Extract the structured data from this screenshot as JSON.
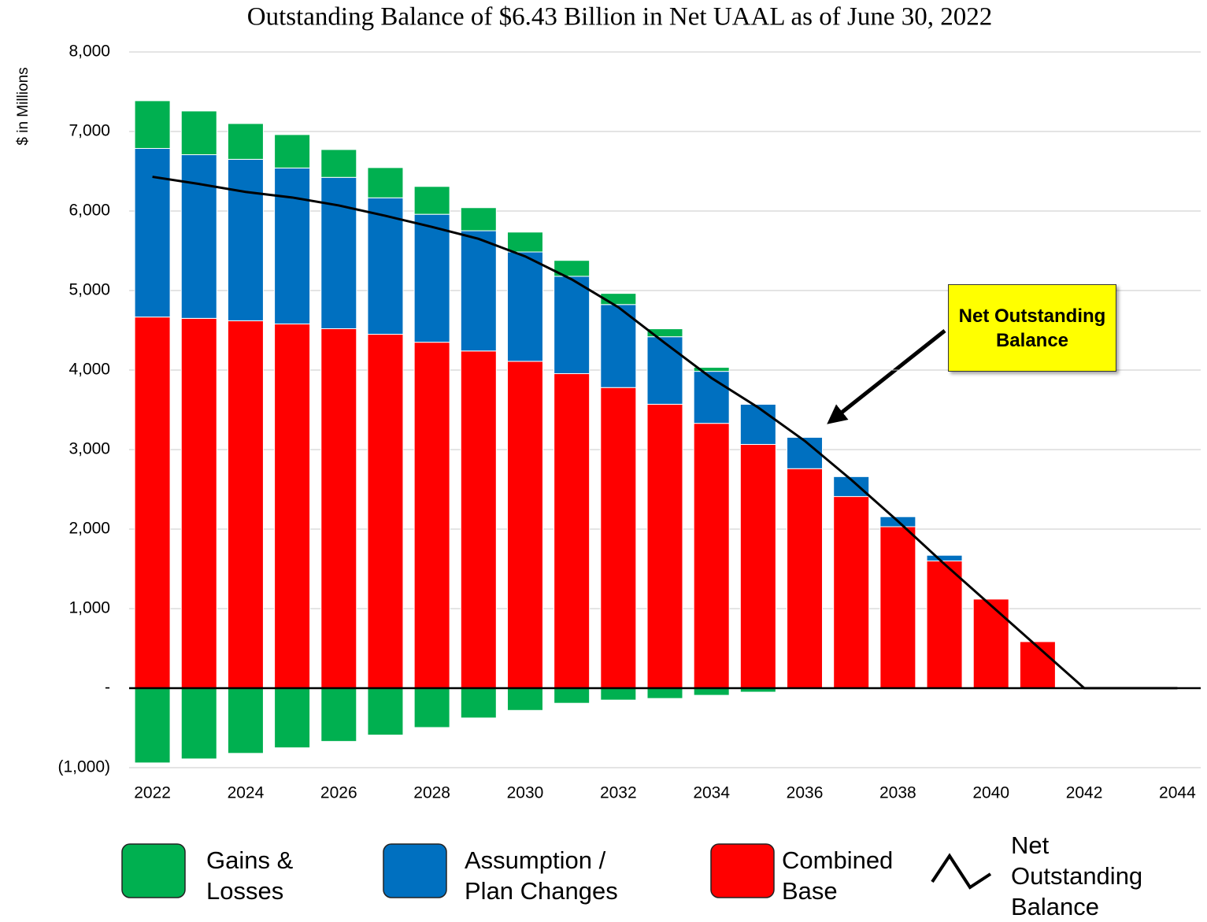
{
  "chart_data": {
    "type": "bar",
    "title": "Outstanding Balance of $6.43 Billion in Net UAAL as of June 30, 2022",
    "y_label": "$ in Millions",
    "annotation": "Net Outstanding Balance",
    "categories": [
      "2022",
      null,
      "2024",
      null,
      "2026",
      null,
      "2028",
      null,
      "2030",
      null,
      "2032",
      null,
      "2034",
      null,
      "2036",
      null,
      "2038",
      null,
      "2040",
      null,
      "2042",
      null,
      "2044"
    ],
    "series": [
      {
        "name": "Combined Base",
        "color": "#ff0000",
        "values": [
          4667,
          4650,
          4620,
          4580,
          4520,
          4450,
          4350,
          4240,
          4110,
          3955,
          3780,
          3570,
          3330,
          3065,
          2760,
          2410,
          2030,
          1600,
          1120,
          585,
          0,
          0,
          0
        ]
      },
      {
        "name": "Assumption / Plan Changes",
        "color": "#0070c0",
        "values": [
          2120,
          2058,
          2030,
          1961,
          1903,
          1716,
          1609,
          1512,
          1375,
          1224,
          1044,
          849,
          654,
          505,
          394,
          250,
          126,
          71,
          0,
          0,
          0,
          0,
          0
        ]
      },
      {
        "name": "Gains & Losses",
        "color": "#00b050",
        "values": [
          600,
          550,
          450,
          420,
          350,
          380,
          350,
          290,
          250,
          200,
          140,
          100,
          50,
          10,
          0,
          0,
          0,
          0,
          0,
          0,
          0,
          0,
          0
        ],
        "negative_values": [
          -940,
          -890,
          -820,
          -750,
          -670,
          -590,
          -495,
          -375,
          -280,
          -190,
          -150,
          -130,
          -90,
          -50,
          0,
          0,
          0,
          0,
          0,
          0,
          0,
          0,
          0
        ]
      }
    ],
    "line": {
      "name": "Net Outstanding Balance",
      "color": "#000000",
      "values": [
        6430,
        6340,
        6240,
        6170,
        6070,
        5940,
        5800,
        5650,
        5430,
        5140,
        4790,
        4340,
        3900,
        3530,
        3110,
        2620,
        2100,
        1560,
        1040,
        520,
        0,
        0,
        0
      ]
    },
    "ylim": [
      -1000,
      8000
    ],
    "yticks": [
      {
        "value": -1000,
        "label": "(1,000)"
      },
      {
        "value": 0,
        "label": "-"
      },
      {
        "value": 1000,
        "label": "1,000"
      },
      {
        "value": 2000,
        "label": "2,000"
      },
      {
        "value": 3000,
        "label": "3,000"
      },
      {
        "value": 4000,
        "label": "4,000"
      },
      {
        "value": 5000,
        "label": "5,000"
      },
      {
        "value": 6000,
        "label": "6,000"
      },
      {
        "value": 7000,
        "label": "7,000"
      },
      {
        "value": 8000,
        "label": "8,000"
      }
    ],
    "grid": true
  }
}
